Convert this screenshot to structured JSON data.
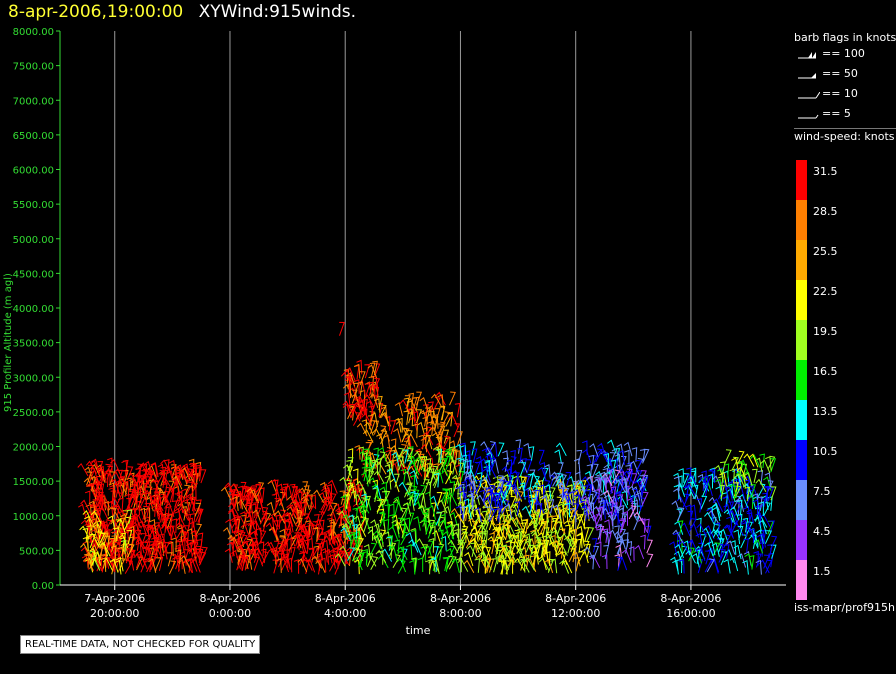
{
  "header": {
    "timestamp": "8-apr-2006,19:00:00",
    "name": "XYWind:915winds."
  },
  "chart_data": {
    "type": "scatter",
    "title": "XYWind:915winds.",
    "xlabel": "time",
    "ylabel": "915 Profiler Altitude (m agl)",
    "ylim": [
      0,
      8000
    ],
    "yticks": [
      "0.00",
      "500.00",
      "1000.00",
      "1500.00",
      "2000.00",
      "2500.00",
      "3000.00",
      "3500.00",
      "4000.00",
      "4500.00",
      "5000.00",
      "5500.00",
      "6000.00",
      "6500.00",
      "7000.00",
      "7500.00",
      "8000.00"
    ],
    "xlim_hours": [
      -1.9,
      23.3
    ],
    "xticks": [
      {
        "date": "7-Apr-2006",
        "time": "20:00:00",
        "hours": 0
      },
      {
        "date": "8-Apr-2006",
        "time": "0:00:00",
        "hours": 4
      },
      {
        "date": "8-Apr-2006",
        "time": "4:00:00",
        "hours": 8
      },
      {
        "date": "8-Apr-2006",
        "time": "8:00:00",
        "hours": 12
      },
      {
        "date": "8-Apr-2006",
        "time": "12:00:00",
        "hours": 16
      },
      {
        "date": "8-Apr-2006",
        "time": "16:00:00",
        "hours": 20
      }
    ],
    "grid": "vertical",
    "clusters": [
      {
        "t0": -1.0,
        "t1": 3.0,
        "z0": 150,
        "z1": 1650,
        "speed": 32,
        "count": 520
      },
      {
        "t0": -1.0,
        "t1": 0.5,
        "z0": 150,
        "z1": 900,
        "speed": 24,
        "count": 60
      },
      {
        "t0": 4.0,
        "t1": 5.2,
        "z0": 200,
        "z1": 1300,
        "speed": 32,
        "count": 130
      },
      {
        "t0": 5.5,
        "t1": 8.6,
        "z0": 150,
        "z1": 1350,
        "speed": 32,
        "count": 260
      },
      {
        "t0": 8.0,
        "t1": 9.2,
        "z0": 2300,
        "z1": 3050,
        "speed": 31,
        "count": 60
      },
      {
        "t0": 8.5,
        "t1": 12.0,
        "z0": 1500,
        "z1": 2600,
        "speed": 28,
        "count": 160
      },
      {
        "t0": 8.0,
        "t1": 12.0,
        "z0": 150,
        "z1": 1800,
        "speed": 18,
        "count": 320
      },
      {
        "t0": 12.0,
        "t1": 16.5,
        "z0": 150,
        "z1": 1400,
        "speed": 22,
        "count": 380
      },
      {
        "t0": 12.0,
        "t1": 18.5,
        "z0": 900,
        "z1": 1900,
        "speed": 10,
        "count": 260
      },
      {
        "t0": 16.5,
        "t1": 18.5,
        "z0": 200,
        "z1": 1500,
        "speed": 6,
        "count": 110
      },
      {
        "t0": 19.5,
        "t1": 22.8,
        "z0": 150,
        "z1": 1500,
        "speed": 12,
        "count": 240
      },
      {
        "t0": 21.0,
        "t1": 22.8,
        "z0": 1200,
        "z1": 1800,
        "speed": 19,
        "count": 40
      }
    ],
    "annotations": [
      {
        "t": 7.8,
        "z": 3600,
        "speed": 32
      }
    ]
  },
  "legend": {
    "barb_header": "barb flags in knots",
    "barbs": [
      {
        "label": "== 100"
      },
      {
        "label": "== 50"
      },
      {
        "label": "== 10"
      },
      {
        "label": "== 5"
      }
    ],
    "speed_header": "wind-speed: knots",
    "scale": [
      {
        "label": "31.5",
        "color": "#ff0000"
      },
      {
        "label": "28.5",
        "color": "#ff7f00"
      },
      {
        "label": "25.5",
        "color": "#ffaa00"
      },
      {
        "label": "22.5",
        "color": "#ffff00"
      },
      {
        "label": "19.5",
        "color": "#a0ff20"
      },
      {
        "label": "16.5",
        "color": "#00ee00"
      },
      {
        "label": "13.5",
        "color": "#00ffff"
      },
      {
        "label": "10.5",
        "color": "#0000ff"
      },
      {
        "label": "7.5",
        "color": "#6a8eff"
      },
      {
        "label": "4.5",
        "color": "#9933ff"
      },
      {
        "label": "1.5",
        "color": "#ff88ee"
      }
    ]
  },
  "footer": {
    "source": "iss-mapr/prof915h",
    "disclaimer": "REAL-TIME DATA, NOT CHECKED FOR QUALITY"
  }
}
